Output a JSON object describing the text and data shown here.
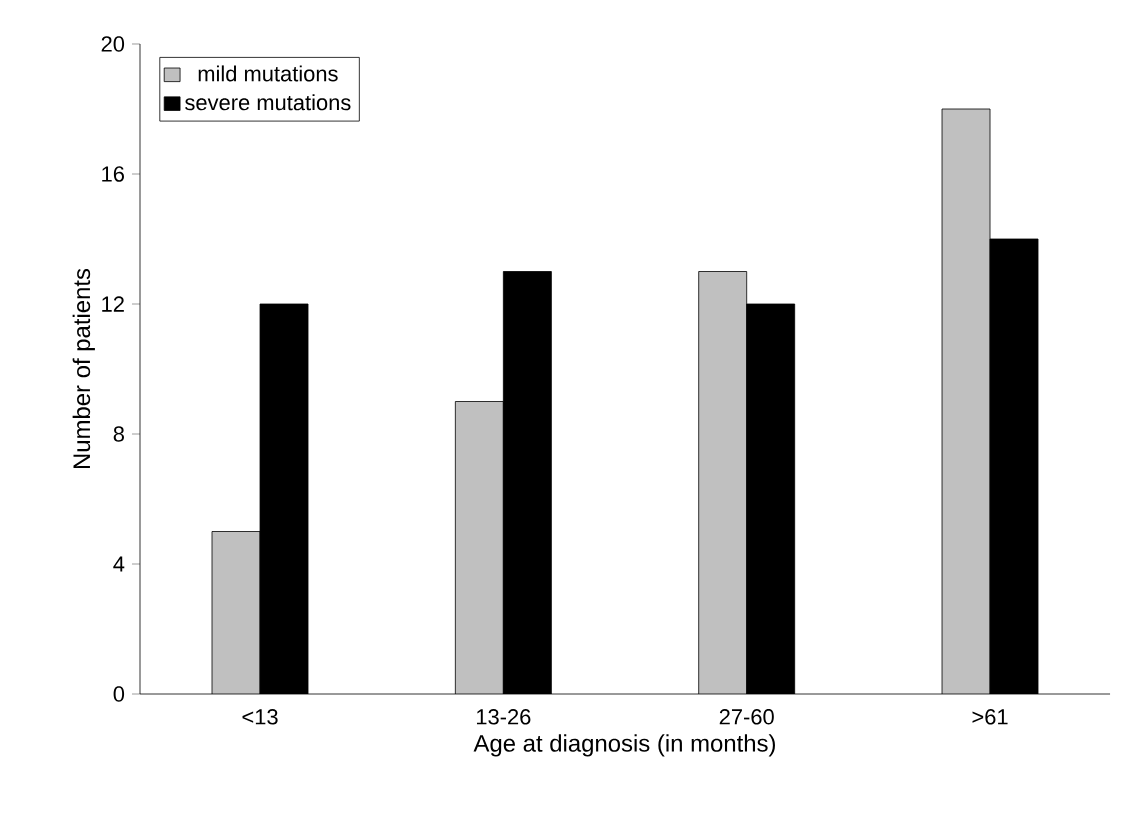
{
  "chart_data": {
    "type": "bar",
    "xlabel": "Age at diagnosis (in months)",
    "ylabel": "Number of patients",
    "categories": [
      "<13",
      "13-26",
      "27-60",
      ">61"
    ],
    "series": [
      {
        "name": "mild mutations",
        "color": "#c0c0c0",
        "values": [
          5,
          9,
          13,
          18
        ]
      },
      {
        "name": "severe mutations",
        "color": "#000000",
        "values": [
          12,
          13,
          12,
          14
        ]
      }
    ],
    "ylim": [
      0,
      20
    ],
    "yticks": [
      0,
      4,
      8,
      12,
      16,
      20
    ],
    "grid": false,
    "legend": "top left"
  }
}
